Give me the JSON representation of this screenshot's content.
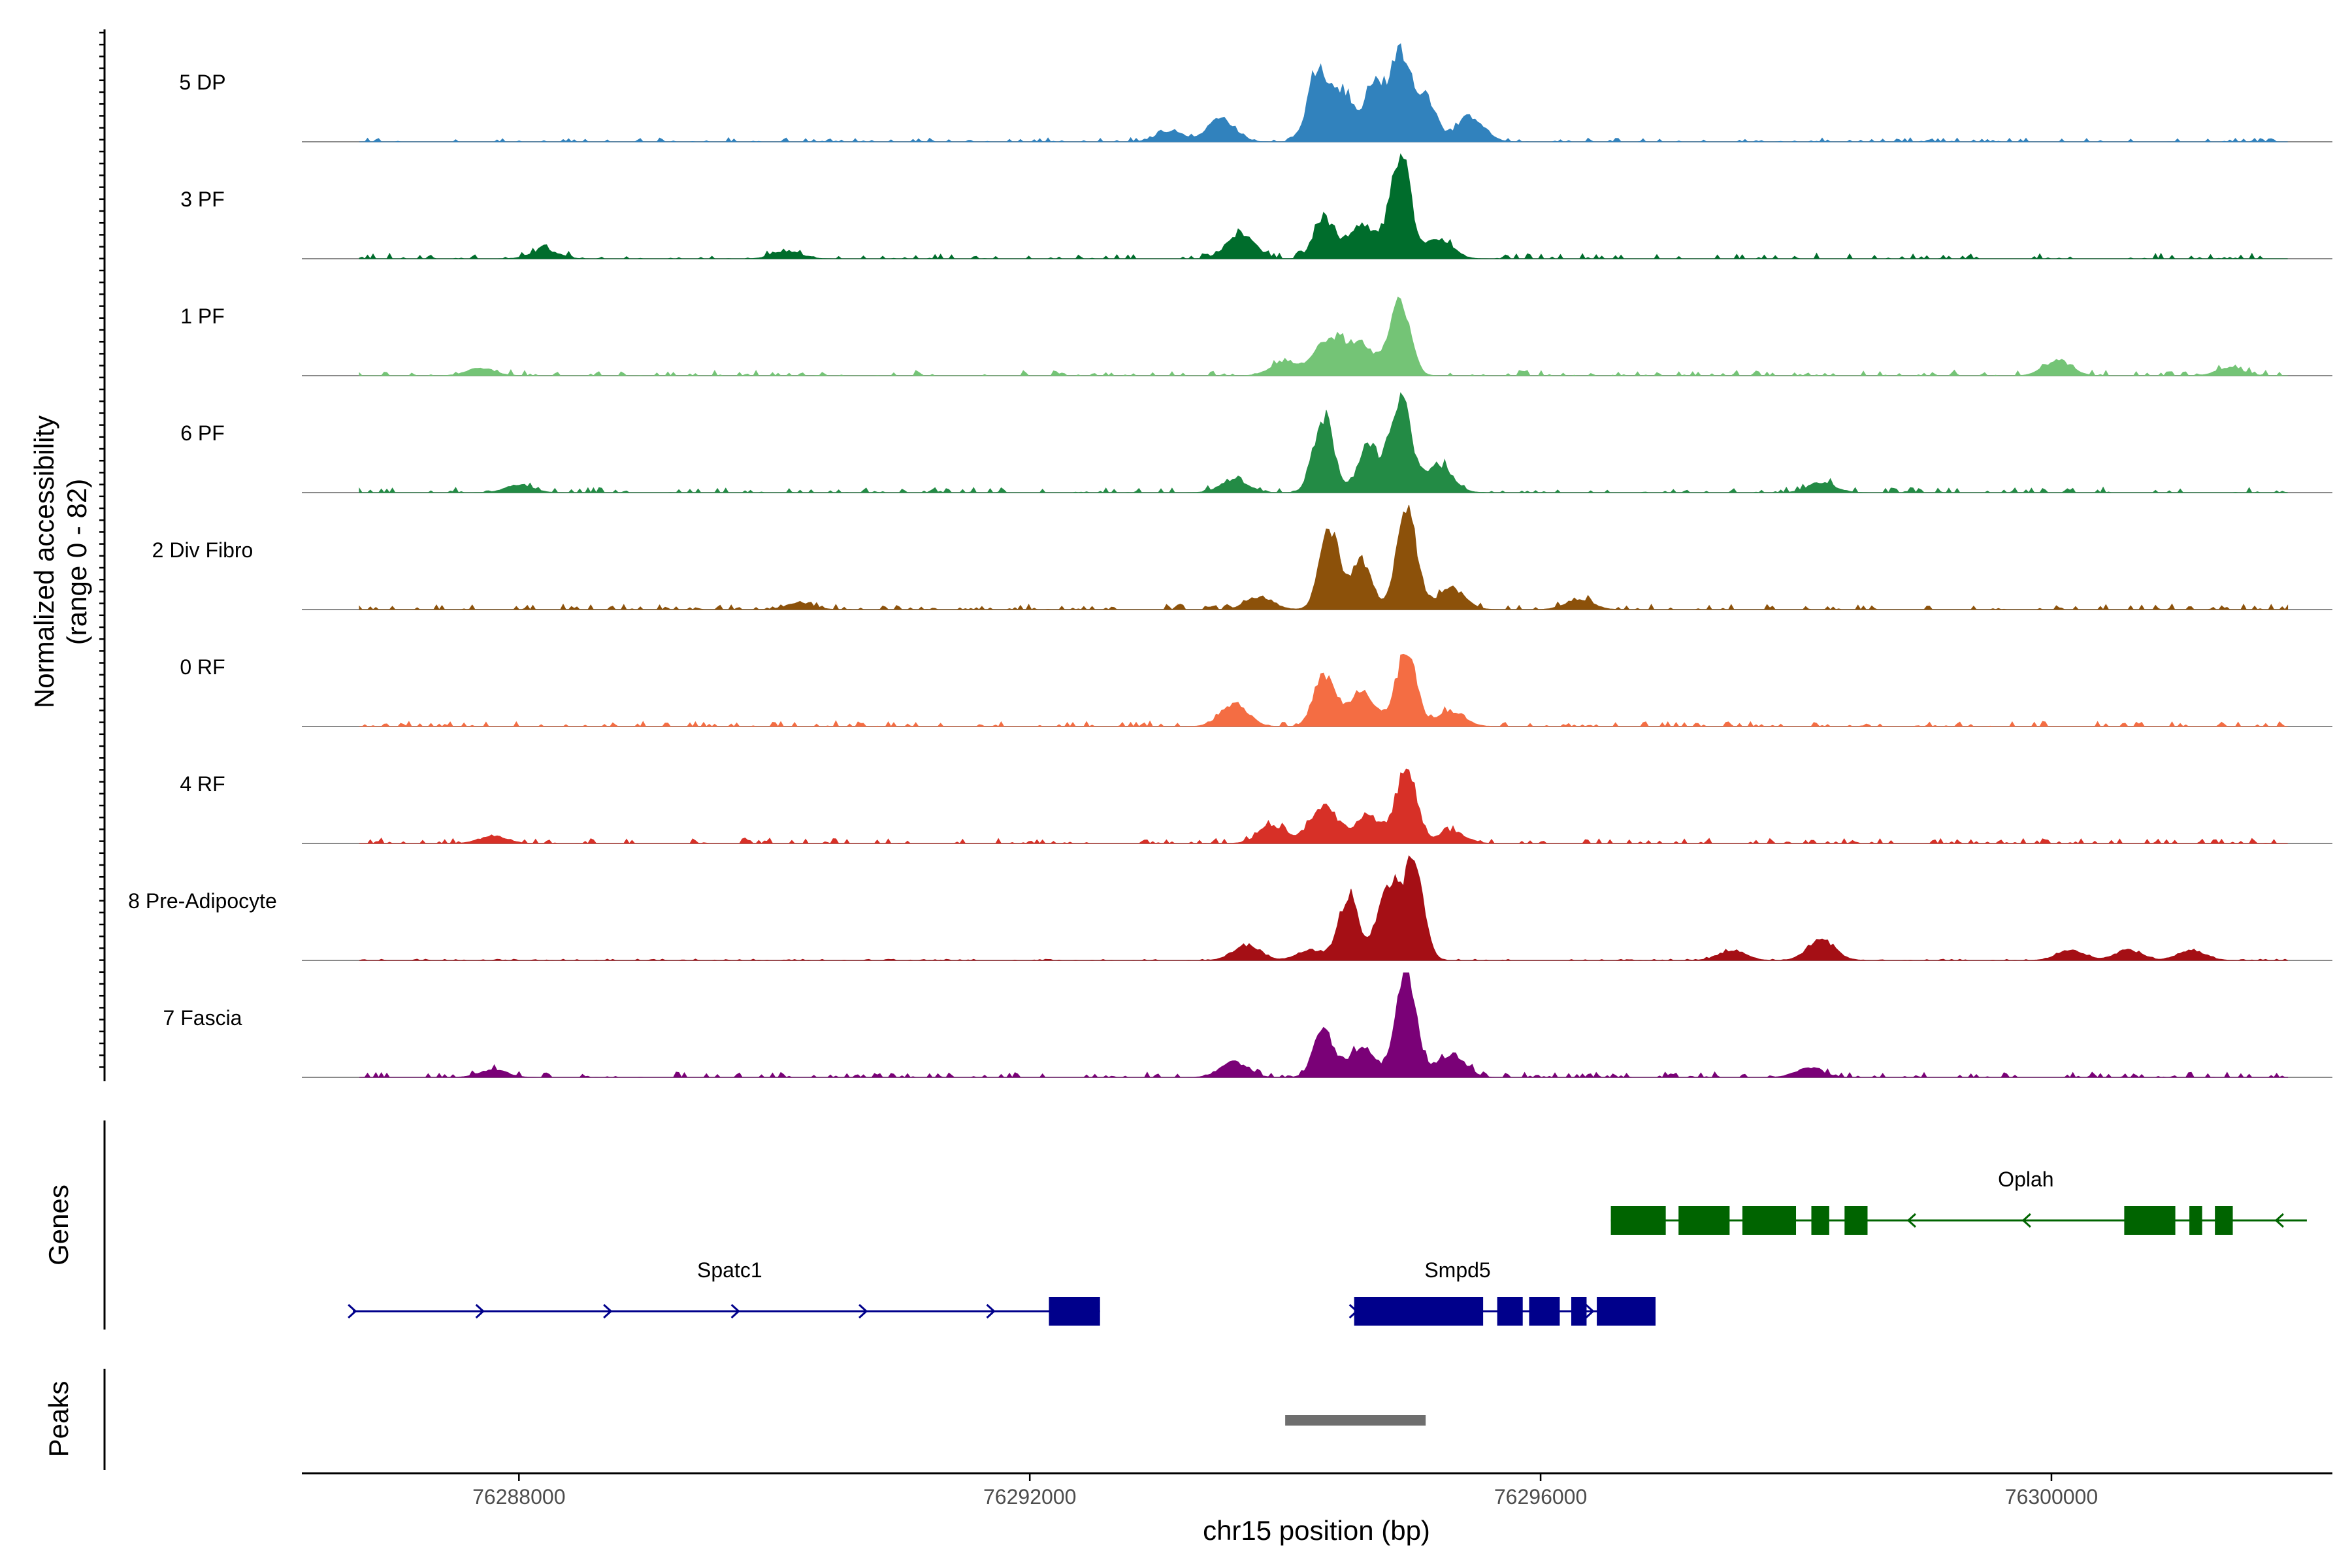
{
  "chart_data": {
    "type": "area",
    "description_axis": {
      "ylabel_line1": "Normalized accessibility",
      "ylabel_line2": "(range 0 - 82)",
      "xlabel": "chr15 position (bp)"
    },
    "xlim": [
      76286300,
      76302200
    ],
    "x_ticks": [
      {
        "value": 76288000,
        "label": "76288000"
      },
      {
        "value": 76292000,
        "label": "76292000"
      },
      {
        "value": 76296000,
        "label": "76296000"
      },
      {
        "value": 76300000,
        "label": "76300000"
      }
    ],
    "y_range": [
      0,
      82
    ],
    "tracks": [
      {
        "name": "5 DP",
        "color": "#3182bd",
        "scale": 0.55,
        "peaks": [
          [
            76293500,
            18
          ],
          [
            76294260,
            60
          ],
          [
            76294460,
            38
          ],
          [
            76294700,
            45
          ],
          [
            76294900,
            68
          ],
          [
            76295100,
            36
          ],
          [
            76295450,
            20
          ],
          [
            76293100,
            8
          ]
        ],
        "noise": 3
      },
      {
        "name": "3 PF",
        "color": "#006d2c",
        "scale": 0.95,
        "peaks": [
          [
            76293650,
            20
          ],
          [
            76294300,
            32
          ],
          [
            76294600,
            28
          ],
          [
            76294900,
            82
          ],
          [
            76295200,
            15
          ],
          [
            76288200,
            7
          ],
          [
            76290100,
            6
          ]
        ],
        "noise": 4
      },
      {
        "name": "1 PF",
        "color": "#74c476",
        "scale": 0.55,
        "peaks": [
          [
            76294000,
            12
          ],
          [
            76294350,
            30
          ],
          [
            76294600,
            24
          ],
          [
            76294900,
            58
          ],
          [
            76300050,
            12
          ],
          [
            76287700,
            6
          ],
          [
            76301400,
            6
          ]
        ],
        "noise": 4
      },
      {
        "name": "6 PF",
        "color": "#238b45",
        "scale": 0.75,
        "peaks": [
          [
            76293600,
            10
          ],
          [
            76294300,
            60
          ],
          [
            76294650,
            38
          ],
          [
            76294900,
            75
          ],
          [
            76295200,
            22
          ],
          [
            76288000,
            6
          ],
          [
            76298200,
            8
          ]
        ],
        "noise": 4
      },
      {
        "name": "2 Div Fibro",
        "color": "#8c510a",
        "scale": 0.8,
        "peaks": [
          [
            76293800,
            10
          ],
          [
            76294350,
            62
          ],
          [
            76294600,
            38
          ],
          [
            76294950,
            82
          ],
          [
            76295300,
            16
          ],
          [
            76296300,
            8
          ],
          [
            76290200,
            5
          ]
        ],
        "noise": 4
      },
      {
        "name": "0 RF",
        "color": "#f46d43",
        "scale": 0.7,
        "peaks": [
          [
            76293600,
            18
          ],
          [
            76294300,
            40
          ],
          [
            76294600,
            28
          ],
          [
            76294950,
            60
          ],
          [
            76295300,
            12
          ],
          [
            76286300,
            5
          ]
        ],
        "noise": 4
      },
      {
        "name": "4 RF",
        "color": "#d73027",
        "scale": 0.5,
        "peaks": [
          [
            76293900,
            14
          ],
          [
            76294300,
            30
          ],
          [
            76294650,
            22
          ],
          [
            76294950,
            58
          ],
          [
            76295300,
            10
          ],
          [
            76287800,
            6
          ]
        ],
        "noise": 4
      },
      {
        "name": "8 Pre-Adipocyte",
        "color": "#a50f15",
        "scale": 0.85,
        "peaks": [
          [
            76294500,
            52
          ],
          [
            76294800,
            60
          ],
          [
            76295000,
            78
          ],
          [
            76293700,
            12
          ],
          [
            76294200,
            8
          ],
          [
            76297500,
            8
          ],
          [
            76298200,
            16
          ],
          [
            76300150,
            8
          ],
          [
            76300600,
            8
          ],
          [
            76301100,
            8
          ]
        ],
        "noise": 1
      },
      {
        "name": "7 Fascia",
        "color": "#7a0177",
        "scale": 0.85,
        "peaks": [
          [
            76293600,
            12
          ],
          [
            76294300,
            36
          ],
          [
            76294600,
            24
          ],
          [
            76294950,
            82
          ],
          [
            76295300,
            18
          ],
          [
            76287800,
            6
          ],
          [
            76298100,
            7
          ]
        ],
        "noise": 4
      }
    ],
    "genes_panel_label": "Genes",
    "peaks_panel_label": "Peaks",
    "genes": [
      {
        "name": "Oplah",
        "strand": "-",
        "color": "#006400",
        "start": 76296550,
        "end": 76302000,
        "exons": [
          [
            76296550,
            76296980
          ],
          [
            76297080,
            76297480
          ],
          [
            76297580,
            76298000
          ],
          [
            76298120,
            76298260
          ],
          [
            76298380,
            76298560
          ],
          [
            76300570,
            76300970
          ],
          [
            76301080,
            76301180
          ],
          [
            76301280,
            76301420
          ]
        ],
        "arrows": [
          76298900,
          76299800,
          76301780
        ]
      },
      {
        "name": "Spatc1",
        "strand": "+",
        "color": "#00008b",
        "start": 76286700,
        "end": 76292550,
        "exons": [
          [
            76292150,
            76292550
          ]
        ],
        "arrows": [
          76286700,
          76287700,
          76288700,
          76289700,
          76290700,
          76291700
        ]
      },
      {
        "name": "Smpd5",
        "strand": "+",
        "color": "#00008b",
        "start": 76294540,
        "end": 76296900,
        "exons": [
          [
            76294540,
            76295550
          ],
          [
            76295660,
            76295860
          ],
          [
            76295910,
            76296150
          ],
          [
            76296240,
            76296360
          ],
          [
            76296440,
            76296900
          ]
        ],
        "arrows": [
          76294540,
          76296390
        ]
      }
    ],
    "peaks": [
      [
        76294000,
        76295100
      ]
    ]
  }
}
